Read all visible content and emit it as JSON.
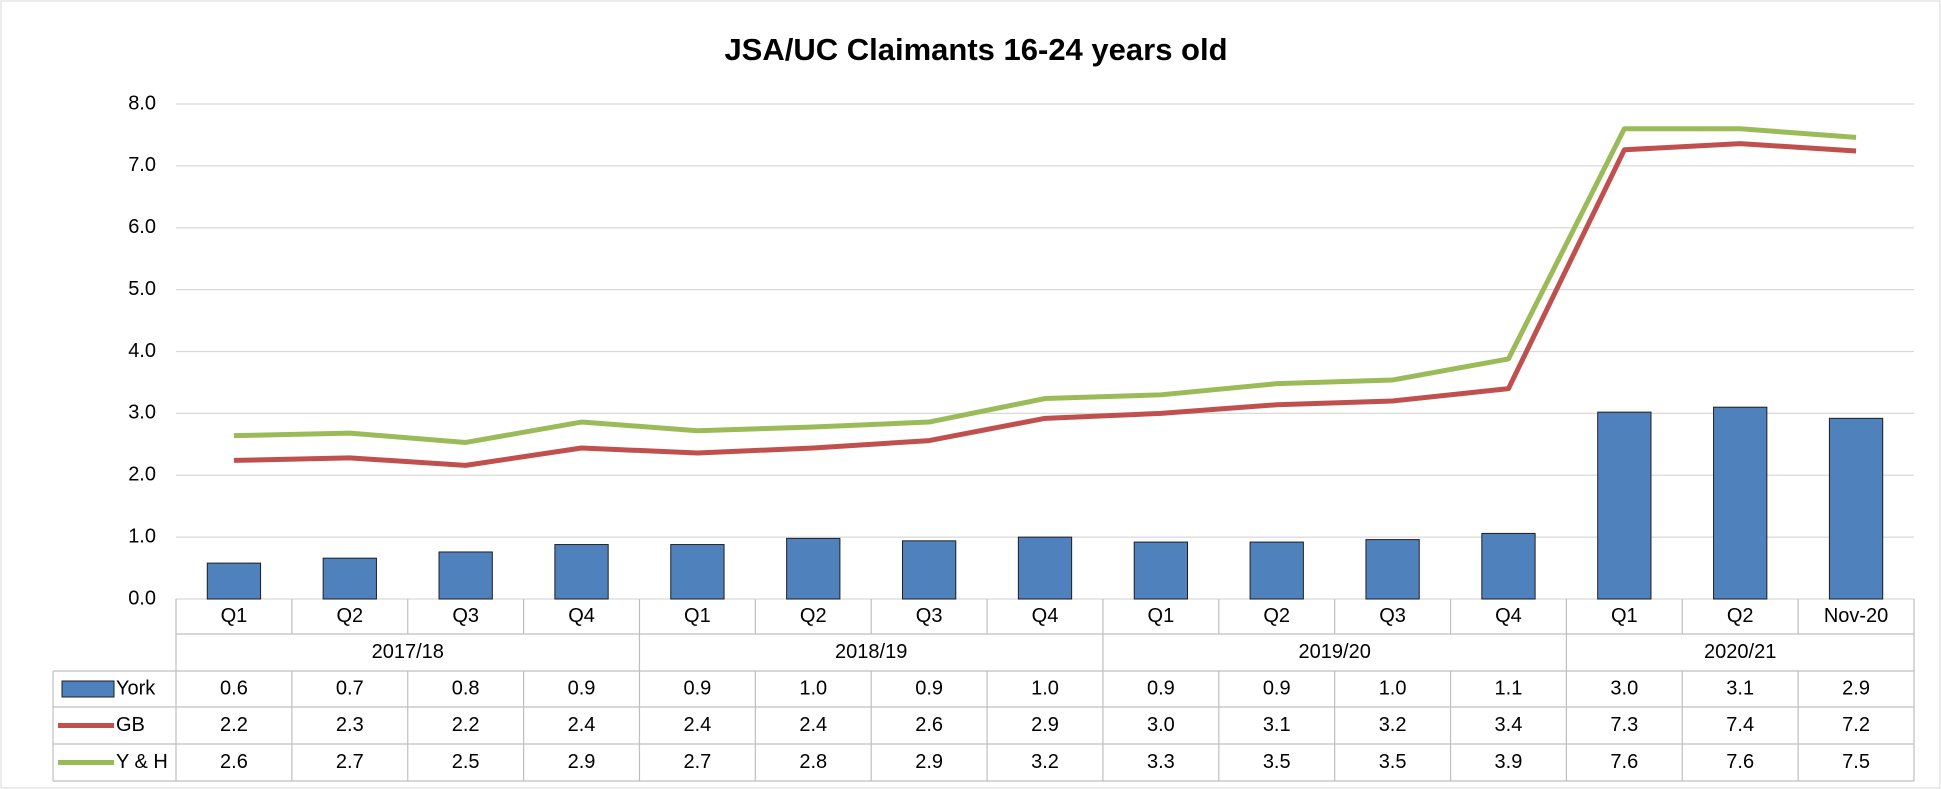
{
  "chart_data": {
    "type": "combo",
    "title": "JSA/UC Claimants 16-24 years old",
    "groups": [
      {
        "label": "2017/18",
        "categories": [
          "Q1",
          "Q2",
          "Q3",
          "Q4"
        ]
      },
      {
        "label": "2018/19",
        "categories": [
          "Q1",
          "Q2",
          "Q3",
          "Q4"
        ]
      },
      {
        "label": "2019/20",
        "categories": [
          "Q1",
          "Q2",
          "Q3",
          "Q4"
        ]
      },
      {
        "label": "2020/21",
        "categories": [
          "Q1",
          "Q2",
          "Nov-20"
        ]
      }
    ],
    "series": [
      {
        "name": "York",
        "type": "bar",
        "color": "#4f81bd",
        "values": [
          0.58,
          0.66,
          0.76,
          0.88,
          0.88,
          0.98,
          0.94,
          1.0,
          0.92,
          0.92,
          0.96,
          1.06,
          3.02,
          3.1,
          2.92
        ],
        "value_labels": [
          "0.6",
          "0.7",
          "0.8",
          "0.9",
          "0.9",
          "1.0",
          "0.9",
          "1.0",
          "0.9",
          "0.9",
          "1.0",
          "1.1",
          "3.0",
          "3.1",
          "2.9"
        ]
      },
      {
        "name": "GB",
        "type": "line",
        "color": "#c0504d",
        "values": [
          2.24,
          2.28,
          2.16,
          2.44,
          2.36,
          2.44,
          2.56,
          2.92,
          3.0,
          3.14,
          3.2,
          3.4,
          7.26,
          7.36,
          7.24
        ],
        "value_labels": [
          "2.2",
          "2.3",
          "2.2",
          "2.4",
          "2.4",
          "2.4",
          "2.6",
          "2.9",
          "3.0",
          "3.1",
          "3.2",
          "3.4",
          "7.3",
          "7.4",
          "7.2"
        ]
      },
      {
        "name": "Y & H",
        "type": "line",
        "color": "#9bbb59",
        "values": [
          2.64,
          2.68,
          2.53,
          2.86,
          2.72,
          2.78,
          2.86,
          3.24,
          3.3,
          3.48,
          3.54,
          3.88,
          7.6,
          7.6,
          7.46
        ],
        "value_labels": [
          "2.6",
          "2.7",
          "2.5",
          "2.9",
          "2.7",
          "2.8",
          "2.9",
          "3.2",
          "3.3",
          "3.5",
          "3.5",
          "3.9",
          "7.6",
          "7.6",
          "7.5"
        ]
      }
    ],
    "ylim": [
      0,
      8
    ],
    "yticks": [
      {
        "value": 0,
        "label": "0.0"
      },
      {
        "value": 1,
        "label": "1.0"
      },
      {
        "value": 2,
        "label": "2.0"
      },
      {
        "value": 3,
        "label": "3.0"
      },
      {
        "value": 4,
        "label": "4.0"
      },
      {
        "value": 5,
        "label": "5.0"
      },
      {
        "value": 6,
        "label": "6.0"
      },
      {
        "value": 7,
        "label": "7.0"
      },
      {
        "value": 8,
        "label": "8.0"
      }
    ],
    "grid": true
  }
}
